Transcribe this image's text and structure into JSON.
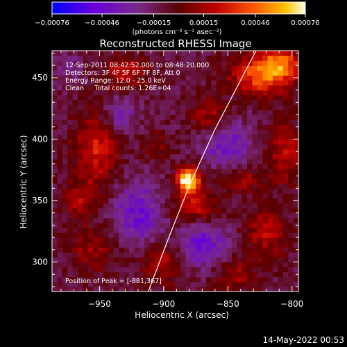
{
  "chart_data": {
    "type": "heatmap",
    "title": "Reconstructed RHESSI Image",
    "xlabel": "Heliocentric X (arcsec)",
    "ylabel": "Heliocentric Y (arcsec)",
    "xlim": [
      -987,
      -795
    ],
    "ylim": [
      276,
      472
    ],
    "xticks": [
      -950,
      -900,
      -850,
      -800
    ],
    "yticks": [
      300,
      350,
      400,
      450
    ],
    "colorbar": {
      "min": -0.00076,
      "max": 0.00076,
      "ticks": [
        -0.00076,
        -0.00046,
        -0.00015,
        0.00015,
        0.00046,
        0.00076
      ],
      "tick_labels": [
        "-0.00076",
        "-0.00046",
        "-0.00015",
        "0.00015",
        "0.00046",
        "0.00076"
      ],
      "units": "(photons cm⁻² s⁻¹ asec⁻²)"
    },
    "annotations": [
      "12-Sep-2011 08:42:52.000 to 08:48:20.000",
      "Detectors: 3F 4F 5F 6F 7F 8F, Att 0",
      "Energy Range: 12.0 - 25.0 keV",
      "Clean     Total counts: 1.26E+04"
    ],
    "peak_label": "Position of Peak = [-881,367]",
    "peak": {
      "x": -881,
      "y": 367,
      "value": 0.00076
    },
    "sources": [
      {
        "x": -881,
        "y": 367,
        "sx": 6,
        "sy": 7,
        "amp": 0.00095
      },
      {
        "x": -952,
        "y": 392,
        "sx": 12,
        "sy": 22,
        "amp": 0.00038
      },
      {
        "x": -965,
        "y": 350,
        "sx": 10,
        "sy": 10,
        "amp": 0.00025
      },
      {
        "x": -955,
        "y": 310,
        "sx": 14,
        "sy": 14,
        "amp": 0.00022
      },
      {
        "x": -930,
        "y": 455,
        "sx": 12,
        "sy": 10,
        "amp": 0.0003
      },
      {
        "x": -900,
        "y": 300,
        "sx": 12,
        "sy": 12,
        "amp": 0.0003
      },
      {
        "x": -905,
        "y": 395,
        "sx": 8,
        "sy": 8,
        "amp": 0.0002
      },
      {
        "x": -825,
        "y": 452,
        "sx": 16,
        "sy": 12,
        "amp": 0.0005
      },
      {
        "x": -808,
        "y": 462,
        "sx": 12,
        "sy": 10,
        "amp": 0.00045
      },
      {
        "x": -805,
        "y": 390,
        "sx": 10,
        "sy": 18,
        "amp": 0.0003
      },
      {
        "x": -840,
        "y": 368,
        "sx": 12,
        "sy": 8,
        "amp": 0.00025
      },
      {
        "x": -820,
        "y": 325,
        "sx": 12,
        "sy": 14,
        "amp": 0.0003
      },
      {
        "x": -845,
        "y": 290,
        "sx": 12,
        "sy": 10,
        "amp": 0.00025
      },
      {
        "x": -875,
        "y": 345,
        "sx": 14,
        "sy": 10,
        "amp": 0.00035
      },
      {
        "x": -865,
        "y": 420,
        "sx": 10,
        "sy": 10,
        "amp": 0.00028
      },
      {
        "x": -920,
        "y": 340,
        "sx": 14,
        "sy": 18,
        "amp": -0.00035
      },
      {
        "x": -870,
        "y": 315,
        "sx": 14,
        "sy": 14,
        "amp": -0.00035
      },
      {
        "x": -850,
        "y": 395,
        "sx": 14,
        "sy": 14,
        "amp": -0.0003
      },
      {
        "x": -935,
        "y": 420,
        "sx": 10,
        "sy": 10,
        "amp": -0.00025
      },
      {
        "x": -975,
        "y": 460,
        "sx": 8,
        "sy": 8,
        "amp": -0.00015
      }
    ],
    "limb_curve": [
      [
        -912,
        276
      ],
      [
        -896,
        320
      ],
      [
        -880,
        362
      ],
      [
        -860,
        408
      ],
      [
        -838,
        452
      ],
      [
        -828,
        472
      ]
    ],
    "grid": false
  },
  "footer": {
    "timestamp": "14-May-2022 00:53"
  }
}
